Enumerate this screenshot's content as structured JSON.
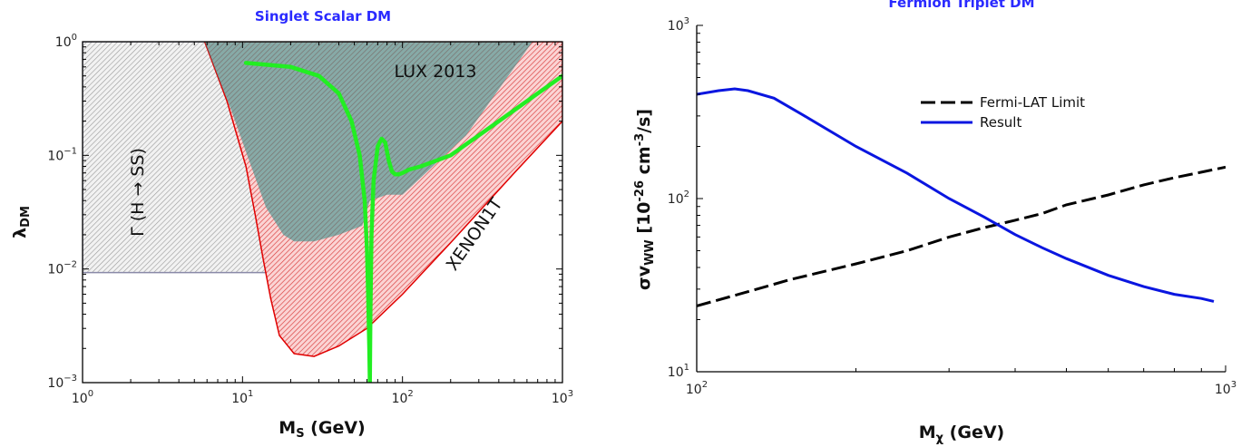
{
  "chart_data": [
    {
      "type": "line",
      "title": "Singlet Scalar DM",
      "xlabel_main": "M",
      "xlabel_sub": "S",
      "xlabel_unit": " (GeV)",
      "ylabel_main": "λ",
      "ylabel_sub": "DM",
      "xscale": "log",
      "yscale": "log",
      "xlim": [
        1,
        1000
      ],
      "ylim": [
        0.001,
        1
      ],
      "x_ticks": [
        {
          "base": "10",
          "exp": "0"
        },
        {
          "base": "10",
          "exp": "1"
        },
        {
          "base": "10",
          "exp": "2"
        },
        {
          "base": "10",
          "exp": "3"
        }
      ],
      "y_ticks": [
        {
          "base": "10",
          "exp": "−3"
        },
        {
          "base": "10",
          "exp": "−2"
        },
        {
          "base": "10",
          "exp": "−1"
        },
        {
          "base": "10",
          "exp": "0"
        }
      ],
      "regions": [
        {
          "label": "Γ (H → SS)",
          "color": "#bbbbbb",
          "boundary": [
            [
              1,
              0.0093
            ],
            [
              62.5,
              0.0093
            ],
            [
              62.5,
              1
            ],
            [
              1,
              1
            ]
          ]
        },
        {
          "label": "XENON1T",
          "color": "#e83030",
          "boundary": [
            [
              5.8,
              1
            ],
            [
              8,
              0.3
            ],
            [
              10.5,
              0.08
            ],
            [
              12,
              0.03
            ],
            [
              13.5,
              0.012
            ],
            [
              15,
              0.0055
            ],
            [
              17,
              0.0026
            ],
            [
              21,
              0.0018
            ],
            [
              28,
              0.0017
            ],
            [
              40,
              0.0021
            ],
            [
              60,
              0.003
            ],
            [
              100,
              0.006
            ],
            [
              200,
              0.017
            ],
            [
              500,
              0.07
            ],
            [
              1000,
              0.2
            ],
            [
              1000,
              1
            ]
          ]
        },
        {
          "label": "LUX 2013",
          "color": "#3a8a84",
          "boundary": [
            [
              5.8,
              1
            ],
            [
              7,
              0.5
            ],
            [
              8.5,
              0.25
            ],
            [
              11,
              0.09
            ],
            [
              14,
              0.035
            ],
            [
              18,
              0.02
            ],
            [
              21,
              0.0175
            ],
            [
              28,
              0.0175
            ],
            [
              40,
              0.02
            ],
            [
              56,
              0.024
            ],
            [
              62.5,
              0.04
            ],
            [
              80,
              0.045
            ],
            [
              100,
              0.045
            ],
            [
              250,
              0.15
            ],
            [
              650,
              1
            ]
          ]
        }
      ],
      "series": [
        {
          "color": "#22ee22",
          "x": [
            10.5,
            20,
            30,
            40,
            48,
            54,
            58,
            60,
            61,
            62,
            62.5,
            62.5,
            63,
            64,
            66,
            70,
            74,
            78,
            82,
            86,
            90,
            95,
            100,
            110,
            130,
            200,
            300,
            500,
            700,
            1000
          ],
          "y": [
            0.65,
            0.6,
            0.5,
            0.35,
            0.2,
            0.1,
            0.04,
            0.015,
            0.006,
            0.002,
            0.001,
            0.001,
            0.004,
            0.02,
            0.06,
            0.12,
            0.14,
            0.13,
            0.09,
            0.072,
            0.068,
            0.068,
            0.07,
            0.075,
            0.08,
            0.1,
            0.15,
            0.25,
            0.35,
            0.5
          ]
        }
      ]
    },
    {
      "type": "line",
      "title": "Fermion Triplet DM",
      "xlabel_main": "M",
      "xlabel_sub": "χ",
      "xlabel_unit": " (GeV)",
      "ylabel_main": "σv",
      "ylabel_sub": "WW",
      "ylabel_rest": " [10",
      "ylabel_exp": "-26",
      "ylabel_unit": " cm",
      "ylabel_unit_exp": "-3",
      "ylabel_end": "/s]",
      "xscale": "log",
      "yscale": "log",
      "xlim": [
        100,
        1000
      ],
      "ylim": [
        10,
        1000
      ],
      "x_ticks": [
        {
          "base": "10",
          "exp": "2"
        },
        {
          "base": "10",
          "exp": "3"
        }
      ],
      "y_ticks": [
        {
          "base": "10",
          "exp": "1"
        },
        {
          "base": "10",
          "exp": "2"
        },
        {
          "base": "10",
          "exp": "3"
        }
      ],
      "legend": {
        "position": "upper-center",
        "entries": [
          "Fermi-LAT Limit",
          "Result"
        ]
      },
      "series": [
        {
          "name": "Fermi-LAT Limit",
          "style": "dashed",
          "color": "#000000",
          "x": [
            100,
            120,
            150,
            200,
            250,
            300,
            350,
            400,
            450,
            500,
            600,
            700,
            800,
            900,
            1000
          ],
          "y": [
            24,
            28,
            34,
            42,
            50,
            60,
            68,
            75,
            82,
            92,
            105,
            120,
            132,
            142,
            152
          ]
        },
        {
          "name": "Result",
          "style": "solid",
          "color": "#0a16e0",
          "x": [
            100,
            110,
            118,
            125,
            140,
            160,
            200,
            250,
            300,
            350,
            400,
            450,
            500,
            600,
            700,
            800,
            900,
            950
          ],
          "y": [
            400,
            420,
            430,
            420,
            380,
            300,
            200,
            140,
            100,
            78,
            62,
            52,
            45,
            36,
            31,
            28,
            26.5,
            25.5
          ]
        }
      ]
    }
  ]
}
